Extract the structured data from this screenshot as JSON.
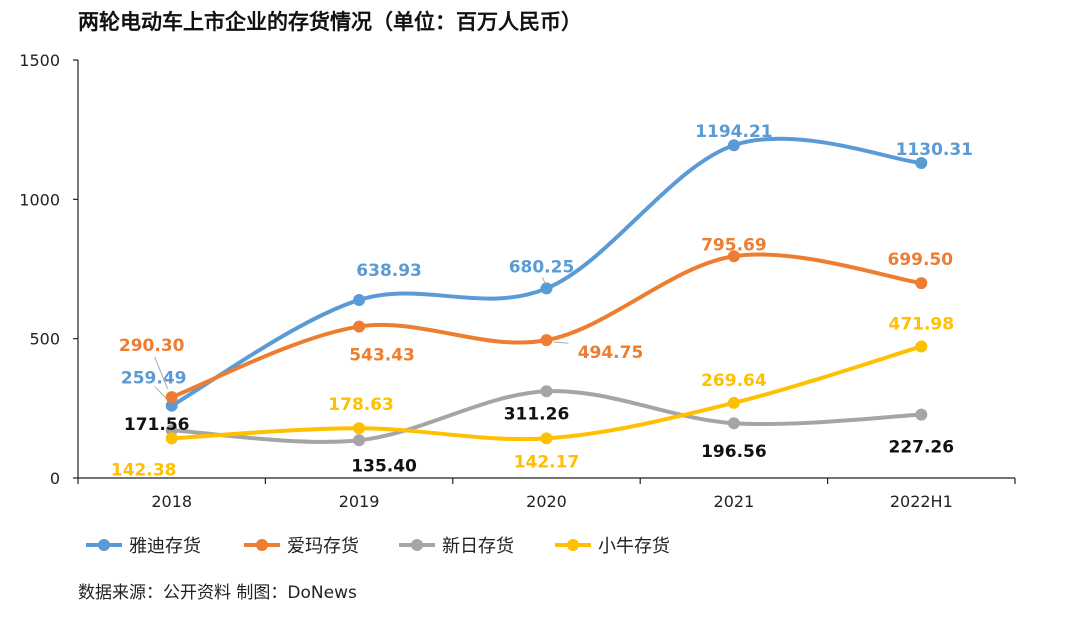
{
  "title": "两轮电动车上市企业的存货情况（单位：百万人民币）",
  "source": "数据来源：公开资料   制图：DoNews",
  "chart_data": {
    "type": "line",
    "categories": [
      "2018",
      "2019",
      "2020",
      "2021",
      "2022H1"
    ],
    "ylim": [
      0,
      1500
    ],
    "yticks": [
      "0",
      "500",
      "1000",
      "1500"
    ],
    "smooth": true,
    "series": [
      {
        "name": "雅迪存货",
        "color": "#5B9BD5",
        "values": [
          259.49,
          638.93,
          680.25,
          1194.21,
          1130.31
        ],
        "labels": [
          "259.49",
          "638.93",
          "680.25",
          "1194.21",
          "1130.31"
        ]
      },
      {
        "name": "爱玛存货",
        "color": "#ED7D31",
        "values": [
          290.3,
          543.43,
          494.75,
          795.69,
          699.5
        ],
        "labels": [
          "290.30",
          "543.43",
          "494.75",
          "795.69",
          "699.50"
        ]
      },
      {
        "name": "新日存货",
        "color": "#A5A5A5",
        "labelColor": "#111111",
        "values": [
          171.56,
          135.4,
          311.26,
          196.56,
          227.26
        ],
        "labels": [
          "171.56",
          "135.40",
          "311.26",
          "196.56",
          "227.26"
        ]
      },
      {
        "name": "小牛存货",
        "color": "#FFC000",
        "values": [
          142.38,
          178.63,
          142.17,
          269.64,
          471.98
        ],
        "labels": [
          "142.38",
          "178.63",
          "142.17",
          "269.64",
          "471.98"
        ]
      }
    ]
  }
}
